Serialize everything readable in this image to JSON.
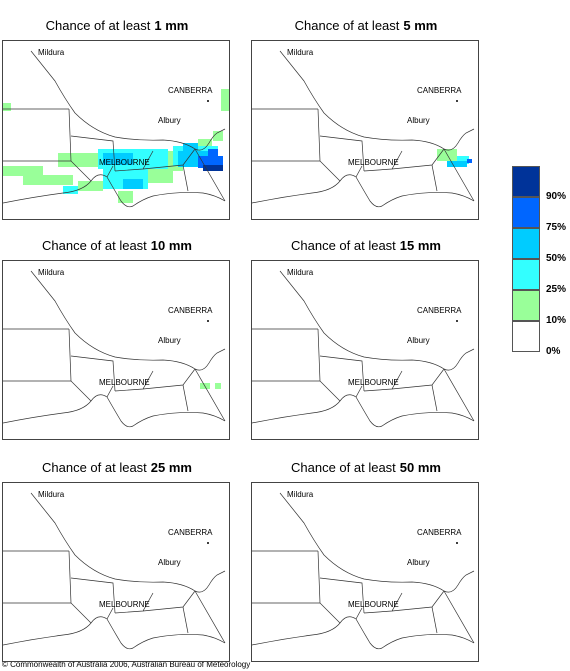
{
  "panels": [
    {
      "title": "Chance of at least",
      "amount": "1 mm"
    },
    {
      "title": "Chance of at least",
      "amount": "5 mm"
    },
    {
      "title": "Chance of at least",
      "amount": "10 mm"
    },
    {
      "title": "Chance of at least",
      "amount": "15 mm"
    },
    {
      "title": "Chance of at least",
      "amount": "25 mm"
    },
    {
      "title": "Chance of at least",
      "amount": "50 mm"
    }
  ],
  "places": [
    "Mildura",
    "CANBERRA",
    "Albury",
    "MELBOURNE"
  ],
  "legend": [
    {
      "color": "#003399",
      "label": "90%"
    },
    {
      "color": "#0066ff",
      "label": "75%"
    },
    {
      "color": "#00ccff",
      "label": "50%"
    },
    {
      "color": "#33ffff",
      "label": "25%"
    },
    {
      "color": "#99ff99",
      "label": "10%"
    },
    {
      "color": "#ffffff",
      "label": "0%"
    }
  ],
  "copyright": "© Commonwealth of Australia 2006, Australian Bureau of Meteorology"
}
